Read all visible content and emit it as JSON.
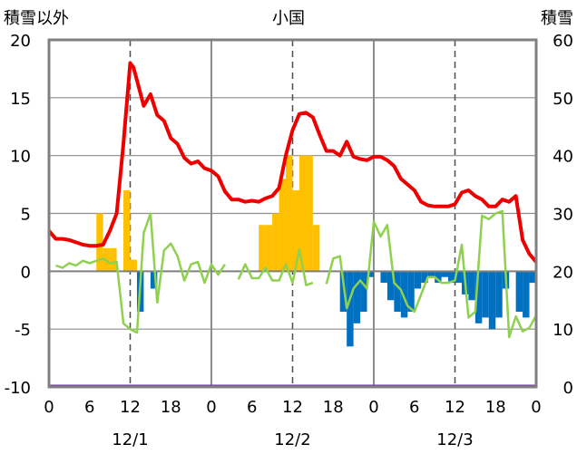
{
  "chart_data": {
    "type": "bar+line",
    "title": "小国",
    "ylabel_left": "積雪以外",
    "ylabel_right": "積雪",
    "ylim_left": [
      -10,
      20
    ],
    "ylim_right": [
      0,
      60
    ],
    "yticks_left": [
      "20",
      "15",
      "10",
      "5",
      "0",
      "-5",
      "-10"
    ],
    "yticks_right": [
      "60",
      "50",
      "40",
      "30",
      "20",
      "10",
      "0"
    ],
    "x_hours": [
      0,
      72
    ],
    "xticks": [
      "0",
      "6",
      "12",
      "18",
      "0",
      "6",
      "12",
      "18",
      "0",
      "6",
      "12",
      "18",
      "0"
    ],
    "dates": [
      "12/1",
      "12/2",
      "12/3"
    ],
    "colors": {
      "temperature": "#ee0000",
      "green_series": "#8fd14f",
      "bar_positive": "#ffc000",
      "bar_negative": "#0070c0",
      "baseline": "#7030a0",
      "frame": "#808080"
    },
    "temperature": [
      [
        0,
        3.5
      ],
      [
        1,
        2.8
      ],
      [
        2,
        2.8
      ],
      [
        3,
        2.7
      ],
      [
        4,
        2.5
      ],
      [
        5,
        2.3
      ],
      [
        6,
        2.2
      ],
      [
        7,
        2.2
      ],
      [
        8,
        2.3
      ],
      [
        9,
        3.5
      ],
      [
        10,
        5.0
      ],
      [
        11,
        11.0
      ],
      [
        12,
        18.0
      ],
      [
        12.5,
        17.6
      ],
      [
        13,
        16.5
      ],
      [
        14,
        14.3
      ],
      [
        15,
        15.3
      ],
      [
        16,
        13.5
      ],
      [
        17,
        13.0
      ],
      [
        18,
        11.5
      ],
      [
        19,
        11.0
      ],
      [
        20,
        9.8
      ],
      [
        21,
        9.3
      ],
      [
        22,
        9.5
      ],
      [
        23,
        8.9
      ],
      [
        24,
        8.7
      ],
      [
        25,
        8.2
      ],
      [
        26,
        6.9
      ],
      [
        27,
        6.2
      ],
      [
        28,
        6.2
      ],
      [
        29,
        6.0
      ],
      [
        30,
        6.1
      ],
      [
        31,
        6.0
      ],
      [
        32,
        6.3
      ],
      [
        33,
        6.5
      ],
      [
        34,
        7.2
      ],
      [
        35,
        10.0
      ],
      [
        36,
        12.2
      ],
      [
        37,
        13.6
      ],
      [
        38,
        13.7
      ],
      [
        39,
        13.3
      ],
      [
        40,
        11.8
      ],
      [
        41,
        10.4
      ],
      [
        42,
        10.4
      ],
      [
        43,
        10.0
      ],
      [
        44,
        11.2
      ],
      [
        45,
        9.9
      ],
      [
        46,
        9.7
      ],
      [
        47,
        9.6
      ],
      [
        48,
        9.9
      ],
      [
        49,
        9.9
      ],
      [
        50,
        9.6
      ],
      [
        51,
        9.1
      ],
      [
        52,
        8.0
      ],
      [
        53,
        7.5
      ],
      [
        54,
        7.0
      ],
      [
        55,
        6.0
      ],
      [
        56,
        5.7
      ],
      [
        57,
        5.6
      ],
      [
        58,
        5.6
      ],
      [
        59,
        5.6
      ],
      [
        60,
        5.8
      ],
      [
        61,
        6.8
      ],
      [
        62,
        7.0
      ],
      [
        63,
        6.5
      ],
      [
        64,
        6.2
      ],
      [
        65,
        5.6
      ],
      [
        66,
        5.6
      ],
      [
        67,
        6.2
      ],
      [
        68,
        6.0
      ],
      [
        69,
        6.5
      ],
      [
        70,
        2.7
      ],
      [
        71,
        1.5
      ],
      [
        72,
        0.8
      ]
    ],
    "green_series_segments": [
      [
        [
          1,
          0.5
        ],
        [
          2,
          0.3
        ],
        [
          3,
          0.7
        ],
        [
          4,
          0.5
        ],
        [
          5,
          0.9
        ],
        [
          6,
          0.7
        ],
        [
          7,
          0.9
        ],
        [
          8,
          1.1
        ],
        [
          9,
          0.7
        ],
        [
          10,
          0.8
        ],
        [
          11,
          -4.5
        ],
        [
          12,
          -5.0
        ],
        [
          13,
          -5.3
        ],
        [
          14,
          3.3
        ],
        [
          15,
          5.0
        ],
        [
          16,
          -2.7
        ],
        [
          17,
          1.8
        ],
        [
          18,
          2.4
        ],
        [
          19,
          1.3
        ],
        [
          20,
          -0.8
        ],
        [
          21,
          0.6
        ],
        [
          22,
          0.8
        ],
        [
          23,
          -1.0
        ],
        [
          24,
          0.6
        ],
        [
          25,
          -0.3
        ],
        [
          26,
          0.6
        ]
      ],
      [
        [
          28,
          -0.7
        ],
        [
          29,
          0.6
        ],
        [
          30,
          -0.6
        ],
        [
          31,
          -0.6
        ],
        [
          32,
          0.3
        ],
        [
          33,
          -0.8
        ],
        [
          34,
          -0.8
        ],
        [
          35,
          0.6
        ],
        [
          36,
          -1.0
        ],
        [
          37,
          1.9
        ],
        [
          38,
          -1.2
        ],
        [
          39,
          -1.0
        ]
      ],
      [
        [
          41,
          -1.1
        ],
        [
          42,
          1.1
        ],
        [
          43,
          1.3
        ],
        [
          44,
          -3.2
        ],
        [
          45,
          -1.5
        ],
        [
          46,
          -0.8
        ],
        [
          47,
          -1.5
        ],
        [
          48,
          4.3
        ],
        [
          49,
          3.0
        ],
        [
          50,
          4.0
        ],
        [
          51,
          -1.0
        ],
        [
          52,
          -1.6
        ],
        [
          53,
          -3.0
        ],
        [
          54,
          -3.5
        ],
        [
          55,
          -2.0
        ],
        [
          56,
          -0.5
        ],
        [
          57,
          -0.5
        ],
        [
          58,
          -1.0
        ],
        [
          59,
          -1.0
        ],
        [
          60,
          -0.8
        ],
        [
          61,
          2.3
        ],
        [
          62,
          -4.0
        ],
        [
          63,
          -3.5
        ],
        [
          64,
          4.8
        ],
        [
          65,
          4.5
        ],
        [
          66,
          5.0
        ],
        [
          67,
          5.2
        ],
        [
          68,
          -5.7
        ],
        [
          69,
          -3.9
        ],
        [
          70,
          -5.2
        ],
        [
          71,
          -4.9
        ],
        [
          72,
          -3.8
        ]
      ]
    ],
    "bars": [
      [
        8,
        5
      ],
      [
        9,
        2
      ],
      [
        10,
        2
      ],
      [
        11,
        0
      ],
      [
        12,
        7
      ],
      [
        13,
        1
      ],
      [
        14,
        -3.5
      ],
      [
        15,
        0
      ],
      [
        16,
        -1.5
      ],
      [
        31,
        0
      ],
      [
        32,
        4
      ],
      [
        33,
        4
      ],
      [
        34,
        5
      ],
      [
        35,
        8
      ],
      [
        36,
        10
      ],
      [
        37,
        7
      ],
      [
        38,
        10
      ],
      [
        39,
        10
      ],
      [
        40,
        4
      ],
      [
        44,
        -3.5
      ],
      [
        45,
        -6.5
      ],
      [
        46,
        -4.5
      ],
      [
        47,
        -3.5
      ],
      [
        48,
        -0.5
      ],
      [
        49,
        0
      ],
      [
        50,
        -1
      ],
      [
        51,
        -2.5
      ],
      [
        52,
        -3.5
      ],
      [
        53,
        -4
      ],
      [
        54,
        -3.5
      ],
      [
        55,
        -1.5
      ],
      [
        56,
        -1
      ],
      [
        57,
        -0.5
      ],
      [
        58,
        -1
      ],
      [
        59,
        -0.5
      ],
      [
        60,
        -1
      ],
      [
        61,
        -1
      ],
      [
        62,
        -2
      ],
      [
        63,
        -2.5
      ],
      [
        64,
        -4.5
      ],
      [
        65,
        -4
      ],
      [
        66,
        -5
      ],
      [
        67,
        -4
      ],
      [
        68,
        -1.5
      ],
      [
        69,
        0
      ],
      [
        70,
        -3.5
      ],
      [
        71,
        -4
      ],
      [
        72,
        -1
      ]
    ]
  }
}
